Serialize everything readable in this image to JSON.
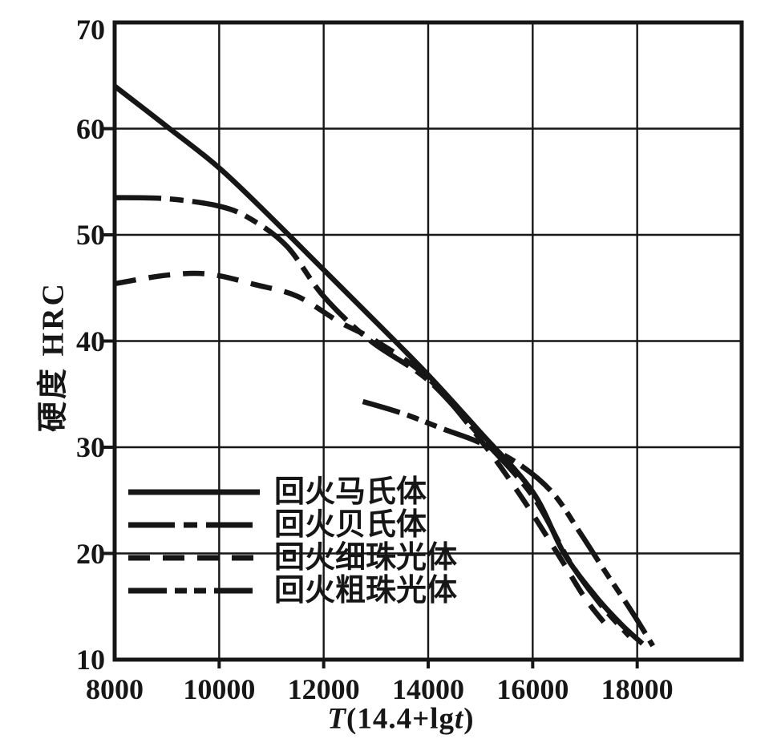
{
  "chart_data": {
    "type": "line",
    "title": "",
    "ylabel": "硬度 HRC",
    "xlabel_parts": {
      "var1": "T",
      "body": "(14.4+lg",
      "var2": "t",
      "close": ")"
    },
    "xlim": [
      8000,
      20000
    ],
    "ylim": [
      10,
      70
    ],
    "x_ticks": [
      8000,
      10000,
      12000,
      14000,
      16000,
      18000
    ],
    "y_ticks": [
      70,
      60,
      50,
      40,
      30,
      20,
      10
    ],
    "grid": true,
    "legend_position": "inside-lower-left",
    "series": [
      {
        "key": "tempered-martensite",
        "name": "回火马氏体",
        "line_style": "solid",
        "dash": [],
        "points": [
          [
            8000,
            64
          ],
          [
            9000,
            60.2
          ],
          [
            10000,
            56.3
          ],
          [
            11000,
            51.6
          ],
          [
            12000,
            46.7
          ],
          [
            13000,
            41.8
          ],
          [
            14000,
            36.8
          ],
          [
            15000,
            31.4
          ],
          [
            16000,
            25.8
          ],
          [
            16600,
            20
          ],
          [
            17200,
            16
          ],
          [
            17700,
            13.3
          ],
          [
            18100,
            11.5
          ]
        ]
      },
      {
        "key": "tempered-bainite",
        "name": "回火贝氏体",
        "line_style": "dash-dot",
        "dash": [
          58,
          11,
          17,
          11
        ],
        "points": [
          [
            8000,
            53.5
          ],
          [
            9000,
            53.4
          ],
          [
            10000,
            52.7
          ],
          [
            10600,
            51.5
          ],
          [
            11300,
            48.9
          ],
          [
            12000,
            44.2
          ],
          [
            12900,
            40
          ],
          [
            14000,
            36.3
          ],
          [
            15000,
            31
          ],
          [
            16000,
            25.4
          ],
          [
            16700,
            19.3
          ],
          [
            17300,
            15.2
          ],
          [
            17850,
            12.2
          ]
        ]
      },
      {
        "key": "tempered-fine-pearlite",
        "name": "回火细珠光体",
        "line_style": "dashed",
        "dash": [
          27,
          16
        ],
        "points": [
          [
            8000,
            45.4
          ],
          [
            9000,
            46.2
          ],
          [
            9800,
            46.3
          ],
          [
            10700,
            45.3
          ],
          [
            11500,
            44.2
          ],
          [
            12300,
            41.8
          ],
          [
            13000,
            40
          ],
          [
            14000,
            36.5
          ],
          [
            15000,
            30.7
          ],
          [
            15800,
            25.2
          ],
          [
            16500,
            19.8
          ],
          [
            17000,
            15.8
          ],
          [
            17450,
            13
          ]
        ]
      },
      {
        "key": "tempered-coarse-pearlite",
        "name": "回火粗珠光体",
        "line_style": "dash-dot-dot",
        "dash": [
          48,
          10,
          15,
          9,
          15,
          10
        ],
        "points": [
          [
            12750,
            34.3
          ],
          [
            13500,
            33.2
          ],
          [
            14300,
            31.7
          ],
          [
            15000,
            30.4
          ],
          [
            15800,
            28.2
          ],
          [
            16400,
            25.6
          ],
          [
            16900,
            22
          ],
          [
            17400,
            18.2
          ],
          [
            17900,
            14.5
          ],
          [
            18300,
            11.3
          ]
        ]
      }
    ],
    "colors": {
      "ink": "#161616",
      "background": "#ffffff"
    }
  }
}
